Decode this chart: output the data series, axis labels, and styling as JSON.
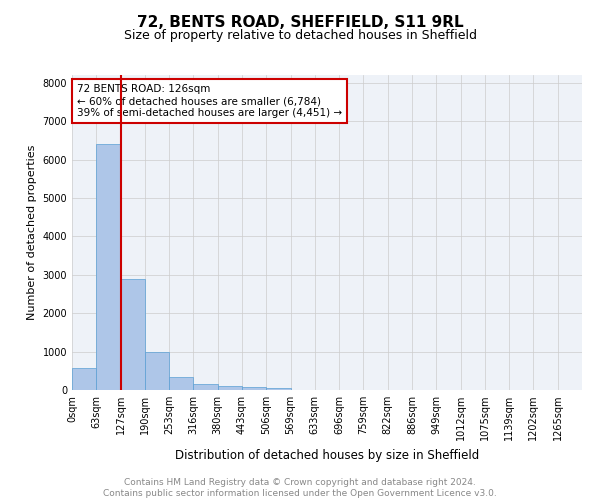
{
  "title": "72, BENTS ROAD, SHEFFIELD, S11 9RL",
  "subtitle": "Size of property relative to detached houses in Sheffield",
  "xlabel": "Distribution of detached houses by size in Sheffield",
  "ylabel": "Number of detached properties",
  "bin_labels": [
    "0sqm",
    "63sqm",
    "127sqm",
    "190sqm",
    "253sqm",
    "316sqm",
    "380sqm",
    "443sqm",
    "506sqm",
    "569sqm",
    "633sqm",
    "696sqm",
    "759sqm",
    "822sqm",
    "886sqm",
    "949sqm",
    "1012sqm",
    "1075sqm",
    "1139sqm",
    "1202sqm",
    "1265sqm"
  ],
  "bar_heights": [
    560,
    6400,
    2900,
    1000,
    350,
    150,
    100,
    75,
    50,
    0,
    0,
    0,
    0,
    0,
    0,
    0,
    0,
    0,
    0,
    0,
    0
  ],
  "bar_color": "#aec6e8",
  "bar_edge_color": "#5a9fd4",
  "vline_x_index": 2,
  "vline_color": "#cc0000",
  "annotation_text": "72 BENTS ROAD: 126sqm\n← 60% of detached houses are smaller (6,784)\n39% of semi-detached houses are larger (4,451) →",
  "annotation_box_color": "#ffffff",
  "annotation_box_edge_color": "#cc0000",
  "ylim": [
    0,
    8200
  ],
  "yticks": [
    0,
    1000,
    2000,
    3000,
    4000,
    5000,
    6000,
    7000,
    8000
  ],
  "grid_color": "#cccccc",
  "bg_color": "#eef2f8",
  "footer_line1": "Contains HM Land Registry data © Crown copyright and database right 2024.",
  "footer_line2": "Contains public sector information licensed under the Open Government Licence v3.0.",
  "title_fontsize": 11,
  "subtitle_fontsize": 9,
  "xlabel_fontsize": 8.5,
  "ylabel_fontsize": 8,
  "tick_fontsize": 7,
  "annotation_fontsize": 7.5,
  "footer_fontsize": 6.5
}
